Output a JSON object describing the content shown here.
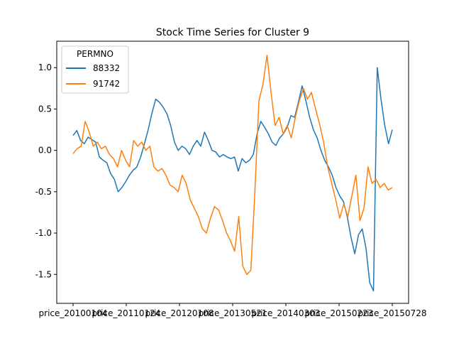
{
  "chart_data": {
    "type": "line",
    "title": "Stock Time Series for Cluster 9",
    "xlabel": "",
    "ylabel": "",
    "ylim": [
      -1.85,
      1.32
    ],
    "yticks": [
      -1.5,
      -1.0,
      -0.5,
      0.0,
      0.5,
      1.0
    ],
    "x_tick_labels": [
      "price_20100104",
      "price_20110124",
      "price_20120108",
      "price_20130521",
      "price_20140303",
      "price_20150223",
      "price_20150728"
    ],
    "legend": {
      "title": "PERMNO",
      "placement": "upper left"
    },
    "series": [
      {
        "name": "88332",
        "color": "#1f77b4",
        "values": [
          0.18,
          0.24,
          0.12,
          0.08,
          0.16,
          0.13,
          0.1,
          -0.08,
          -0.12,
          -0.15,
          -0.28,
          -0.35,
          -0.5,
          -0.45,
          -0.38,
          -0.3,
          -0.24,
          -0.2,
          -0.08,
          0.08,
          0.25,
          0.45,
          0.62,
          0.58,
          0.52,
          0.44,
          0.3,
          0.1,
          0.0,
          0.05,
          0.02,
          -0.05,
          0.05,
          0.12,
          0.05,
          0.22,
          0.12,
          0.0,
          -0.02,
          -0.08,
          -0.05,
          -0.08,
          -0.1,
          -0.08,
          -0.25,
          -0.1,
          -0.15,
          -0.12,
          -0.05,
          0.2,
          0.35,
          0.28,
          0.2,
          0.1,
          0.06,
          0.15,
          0.2,
          0.28,
          0.42,
          0.4,
          0.58,
          0.78,
          0.6,
          0.4,
          0.25,
          0.15,
          0.0,
          -0.12,
          -0.2,
          -0.3,
          -0.45,
          -0.55,
          -0.62,
          -0.8,
          -1.05,
          -1.25,
          -1.02,
          -0.95,
          -1.18,
          -1.6,
          -1.7,
          1.0,
          0.62,
          0.3,
          0.08,
          0.25
        ]
      },
      {
        "name": "91742",
        "color": "#ff7f0e",
        "values": [
          -0.04,
          0.02,
          0.05,
          0.35,
          0.22,
          0.05,
          0.1,
          0.02,
          0.05,
          -0.05,
          -0.1,
          -0.2,
          0.0,
          -0.12,
          -0.2,
          0.12,
          0.05,
          0.1,
          0.0,
          0.05,
          -0.2,
          -0.25,
          -0.22,
          -0.3,
          -0.42,
          -0.45,
          -0.5,
          -0.3,
          -0.4,
          -0.6,
          -0.7,
          -0.8,
          -0.95,
          -1.0,
          -0.82,
          -0.68,
          -0.72,
          -0.85,
          -1.0,
          -1.1,
          -1.22,
          -0.8,
          -1.4,
          -1.5,
          -1.45,
          -0.5,
          0.6,
          0.8,
          1.15,
          0.7,
          0.3,
          0.4,
          0.2,
          0.3,
          0.15,
          0.4,
          0.6,
          0.75,
          0.62,
          0.7,
          0.5,
          0.32,
          0.1,
          -0.2,
          -0.4,
          -0.6,
          -0.82,
          -0.65,
          -0.8,
          -0.55,
          -0.3,
          -0.85,
          -0.7,
          -0.2,
          -0.4,
          -0.35,
          -0.45,
          -0.4,
          -0.48,
          -0.45
        ]
      }
    ]
  }
}
